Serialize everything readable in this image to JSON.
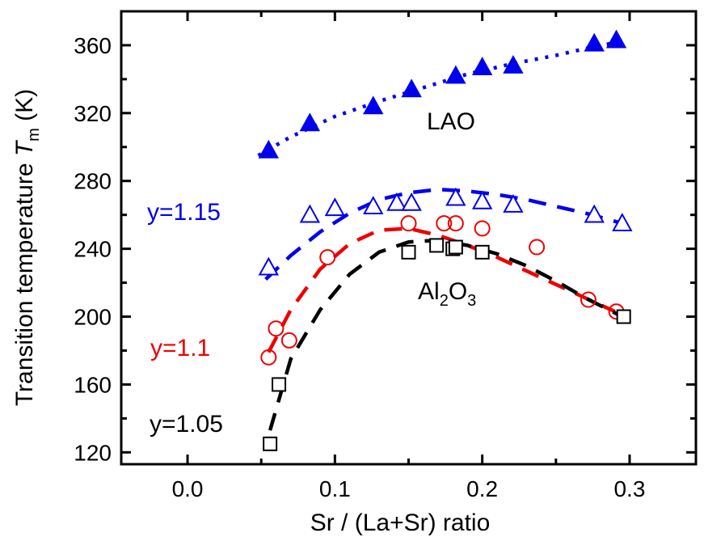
{
  "chart_data": {
    "type": "scatter",
    "xlabel": "Sr / (La+Sr) ratio",
    "ylabel": {
      "prefix": "Transition temperature ",
      "symbol": "T",
      "subscript": "m",
      "unit": " (K)"
    },
    "xlim": [
      -0.045,
      0.345
    ],
    "ylim": [
      113,
      380
    ],
    "x_ticks": [
      "0.0",
      "0.1",
      "0.2",
      "0.3"
    ],
    "x_tick_values": [
      0.0,
      0.1,
      0.2,
      0.3
    ],
    "y_ticks": [
      "120",
      "160",
      "200",
      "240",
      "280",
      "320",
      "360"
    ],
    "y_tick_values": [
      120,
      160,
      200,
      240,
      280,
      320,
      360
    ],
    "grid": false,
    "annotations": [
      {
        "id": "lao",
        "text": "LAO",
        "color": "#000000"
      },
      {
        "id": "al2o3",
        "parts": [
          "Al",
          "2",
          "O",
          "3"
        ],
        "color": "#000000"
      },
      {
        "id": "y115",
        "text": "y=1.15",
        "color": "#0000ee"
      },
      {
        "id": "y11",
        "text": "y=1.1",
        "color": "#ee0000"
      },
      {
        "id": "y105",
        "text": "y=1.05",
        "color": "#000000"
      }
    ],
    "series": [
      {
        "id": "lao",
        "marker": "triangle-filled",
        "color": "#0000ee",
        "x": [
          0.055,
          0.083,
          0.126,
          0.152,
          0.182,
          0.2,
          0.221,
          0.276,
          0.291
        ],
        "y": [
          298,
          314,
          324,
          334,
          342,
          347,
          348,
          361,
          363
        ],
        "fit": {
          "style": "dotted",
          "x": [
            0.048,
            0.07,
            0.1,
            0.13,
            0.16,
            0.19,
            0.22,
            0.25,
            0.28,
            0.295
          ],
          "y": [
            295,
            306,
            318,
            327,
            335,
            343,
            349,
            354,
            360,
            362
          ]
        }
      },
      {
        "id": "y115",
        "marker": "triangle-open",
        "color": "#0000ee",
        "x": [
          0.055,
          0.083,
          0.1,
          0.126,
          0.142,
          0.152,
          0.182,
          0.2,
          0.221,
          0.276,
          0.295
        ],
        "y": [
          229,
          260,
          264,
          265,
          267,
          267,
          270,
          268,
          266,
          260,
          255
        ],
        "fit": {
          "style": "dashed",
          "x": [
            0.053,
            0.07,
            0.09,
            0.11,
            0.13,
            0.15,
            0.17,
            0.19,
            0.21,
            0.23,
            0.25,
            0.27,
            0.295
          ],
          "y": [
            222,
            236,
            250,
            261,
            269,
            273,
            275,
            274,
            272,
            269,
            265,
            261,
            255
          ]
        }
      },
      {
        "id": "y11",
        "marker": "circle-open",
        "color": "#ee0000",
        "x": [
          0.055,
          0.06,
          0.069,
          0.095,
          0.15,
          0.174,
          0.182,
          0.2,
          0.237,
          0.272,
          0.291
        ],
        "y": [
          176,
          193,
          186,
          235,
          255,
          255,
          255,
          252,
          241,
          210,
          203
        ],
        "fit": {
          "style": "dashed",
          "x": [
            0.055,
            0.07,
            0.09,
            0.11,
            0.13,
            0.15,
            0.17,
            0.19,
            0.21,
            0.23,
            0.25,
            0.27,
            0.29
          ],
          "y": [
            179,
            204,
            228,
            243,
            251,
            252,
            248,
            242,
            235,
            227,
            219,
            211,
            203
          ]
        }
      },
      {
        "id": "y105",
        "marker": "square-open",
        "color": "#000000",
        "x": [
          0.056,
          0.062,
          0.15,
          0.169,
          0.18,
          0.182,
          0.2,
          0.296
        ],
        "y": [
          125,
          160,
          238,
          242,
          240,
          241,
          238,
          200
        ],
        "fit": {
          "style": "dashed",
          "x": [
            0.056,
            0.07,
            0.09,
            0.11,
            0.13,
            0.15,
            0.17,
            0.19,
            0.21,
            0.23,
            0.25,
            0.27,
            0.295
          ],
          "y": [
            133,
            175,
            204,
            225,
            238,
            244,
            245,
            242,
            237,
            230,
            221,
            211,
            200
          ]
        }
      }
    ]
  }
}
